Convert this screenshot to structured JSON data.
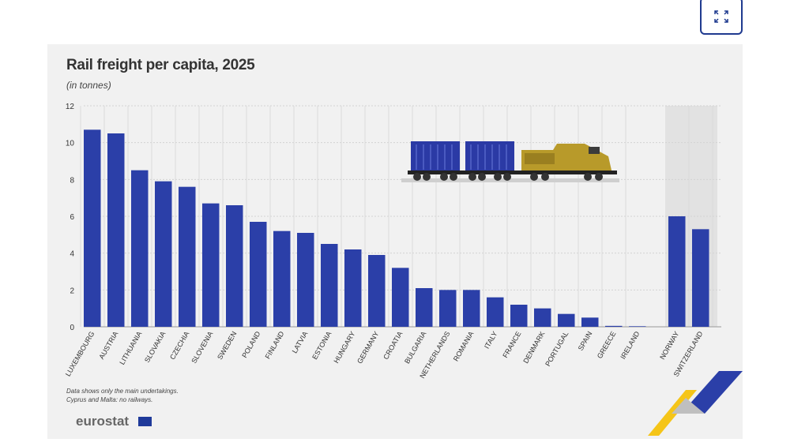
{
  "header": {
    "title": "Rail freight per capita, 2025",
    "subtitle": "(in tonnes)"
  },
  "chart_data": {
    "type": "bar",
    "title": "Rail freight per capita, 2025",
    "subtitle": "(in tonnes)",
    "categories": [
      "LUXEMBOURG",
      "AUSTRIA",
      "LITHUANIA",
      "SLOVAKIA",
      "CZECHIA",
      "SLOVENIA",
      "SWEDEN",
      "POLAND",
      "FINLAND",
      "LATVIA",
      "ESTONIA",
      "HUNGARY",
      "GERMANY",
      "CROATIA",
      "BULGARIA",
      "NETHERLANDS",
      "ROMANIA",
      "ITALY",
      "FRANCE",
      "DENMARK",
      "PORTUGAL",
      "SPAIN",
      "GREECE",
      "IRELAND",
      "NORWAY",
      "SWITZERLAND"
    ],
    "values": [
      10.7,
      10.5,
      8.5,
      7.9,
      7.6,
      6.7,
      6.6,
      5.7,
      5.2,
      5.1,
      4.5,
      4.2,
      3.9,
      3.2,
      2.1,
      2.0,
      2.0,
      1.6,
      1.2,
      1.0,
      0.7,
      0.5,
      0.05,
      0.03,
      6.0,
      5.3
    ],
    "ylim": [
      0,
      12
    ],
    "yticks": [
      "0",
      "2",
      "4",
      "6",
      "8",
      "10",
      "12"
    ],
    "grid": true,
    "bar_color": "#2b3fa8",
    "highlight_group": [
      "NORWAY",
      "SWITZERLAND"
    ],
    "highlight_color": "#e2e2e2"
  },
  "notes": {
    "line1": "Data shows only the main undertakings.",
    "line2": "Cyprus and Malta: no railways."
  },
  "logo": {
    "text": "eurostat"
  },
  "icons": {
    "expand": "expand-icon",
    "illustration": "freight-train-illustration"
  }
}
